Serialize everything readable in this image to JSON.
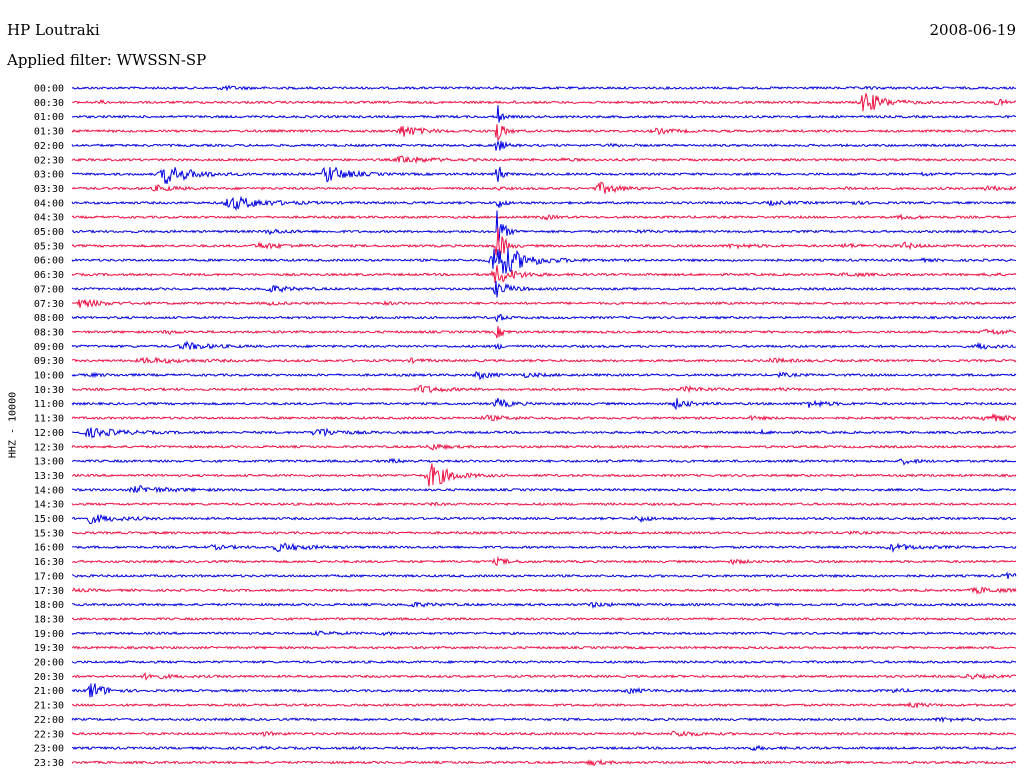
{
  "header": {
    "station": "HP Loutraki",
    "date": "2008-06-19",
    "filter": "Applied filter: WWSSN-SP",
    "ylabel": "HHZ - 10000"
  },
  "colors": {
    "blue": "#0000e0",
    "red": "#ee1144"
  },
  "chart_data": {
    "type": "line",
    "title": "",
    "xlabel": "",
    "ylabel": "HHZ - 10000",
    "rows": [
      {
        "time": "00:00",
        "color": "blue",
        "events": [
          [
            0.16,
            0.5,
            0.03
          ],
          [
            0.45,
            0.3,
            0.01
          ],
          [
            0.84,
            0.2,
            0.03
          ]
        ]
      },
      {
        "time": "00:30",
        "color": "red",
        "events": [
          [
            0.03,
            0.4,
            0.01
          ],
          [
            0.47,
            0.3,
            0.01
          ],
          [
            0.84,
            3.5,
            0.03
          ],
          [
            0.98,
            0.8,
            0.02
          ]
        ]
      },
      {
        "time": "01:00",
        "color": "blue",
        "events": [
          [
            0.45,
            6.0,
            0.005
          ]
        ]
      },
      {
        "time": "01:30",
        "color": "red",
        "events": [
          [
            0.35,
            1.8,
            0.03
          ],
          [
            0.45,
            4.0,
            0.01
          ],
          [
            0.62,
            0.7,
            0.03
          ]
        ]
      },
      {
        "time": "02:00",
        "color": "blue",
        "events": [
          [
            0.45,
            2.5,
            0.01
          ],
          [
            0.57,
            0.3,
            0.02
          ]
        ]
      },
      {
        "time": "02:30",
        "color": "red",
        "events": [
          [
            0.35,
            1.1,
            0.04
          ],
          [
            0.52,
            0.3,
            0.02
          ]
        ]
      },
      {
        "time": "03:00",
        "color": "blue",
        "events": [
          [
            0.1,
            3.0,
            0.04
          ],
          [
            0.27,
            3.0,
            0.03
          ],
          [
            0.45,
            8.0,
            0.005
          ],
          [
            0.9,
            0.4,
            0.02
          ]
        ]
      },
      {
        "time": "03:30",
        "color": "red",
        "events": [
          [
            0.09,
            0.8,
            0.03
          ],
          [
            0.45,
            0.5,
            0.01
          ],
          [
            0.56,
            1.7,
            0.03
          ],
          [
            0.82,
            0.4,
            0.02
          ],
          [
            0.97,
            0.6,
            0.03
          ]
        ]
      },
      {
        "time": "04:00",
        "color": "blue",
        "events": [
          [
            0.17,
            2.0,
            0.05
          ],
          [
            0.45,
            2.0,
            0.01
          ],
          [
            0.74,
            0.5,
            0.03
          ],
          [
            0.82,
            0.6,
            0.02
          ]
        ]
      },
      {
        "time": "04:30",
        "color": "red",
        "events": [
          [
            0.5,
            0.6,
            0.02
          ],
          [
            0.88,
            0.5,
            0.03
          ]
        ]
      },
      {
        "time": "05:00",
        "color": "blue",
        "events": [
          [
            0.21,
            0.6,
            0.03
          ],
          [
            0.45,
            7.0,
            0.01
          ],
          [
            0.6,
            0.3,
            0.02
          ]
        ]
      },
      {
        "time": "05:30",
        "color": "red",
        "events": [
          [
            0.2,
            0.8,
            0.04
          ],
          [
            0.45,
            8.0,
            0.01
          ],
          [
            0.7,
            0.5,
            0.04
          ],
          [
            0.82,
            0.5,
            0.03
          ],
          [
            0.88,
            1.0,
            0.02
          ]
        ]
      },
      {
        "time": "06:00",
        "color": "blue",
        "events": [
          [
            0.45,
            6.0,
            0.04
          ],
          [
            0.9,
            0.3,
            0.02
          ]
        ]
      },
      {
        "time": "06:30",
        "color": "red",
        "events": [
          [
            0.45,
            3.0,
            0.03
          ],
          [
            0.82,
            0.5,
            0.03
          ],
          [
            0.97,
            0.4,
            0.02
          ]
        ]
      },
      {
        "time": "07:00",
        "color": "blue",
        "events": [
          [
            0.21,
            1.0,
            0.03
          ],
          [
            0.45,
            2.5,
            0.02
          ]
        ]
      },
      {
        "time": "07:30",
        "color": "red",
        "events": [
          [
            0.01,
            1.3,
            0.03
          ],
          [
            0.21,
            0.4,
            0.02
          ],
          [
            0.33,
            0.3,
            0.02
          ]
        ]
      },
      {
        "time": "08:00",
        "color": "blue",
        "events": [
          [
            0.45,
            1.5,
            0.01
          ]
        ]
      },
      {
        "time": "08:30",
        "color": "red",
        "events": [
          [
            0.1,
            0.5,
            0.02
          ],
          [
            0.45,
            2.0,
            0.01
          ],
          [
            0.97,
            0.7,
            0.04
          ]
        ]
      },
      {
        "time": "09:00",
        "color": "blue",
        "events": [
          [
            0.12,
            1.1,
            0.04
          ],
          [
            0.45,
            0.8,
            0.01
          ],
          [
            0.96,
            1.0,
            0.02
          ]
        ]
      },
      {
        "time": "09:30",
        "color": "red",
        "events": [
          [
            0.08,
            0.7,
            0.06
          ],
          [
            0.36,
            0.5,
            0.02
          ],
          [
            0.74,
            0.6,
            0.03
          ]
        ]
      },
      {
        "time": "10:00",
        "color": "blue",
        "events": [
          [
            0.02,
            0.3,
            0.03
          ],
          [
            0.43,
            1.2,
            0.02
          ],
          [
            0.48,
            0.5,
            0.03
          ],
          [
            0.75,
            0.5,
            0.02
          ]
        ]
      },
      {
        "time": "10:30",
        "color": "red",
        "events": [
          [
            0.37,
            1.2,
            0.03
          ],
          [
            0.65,
            0.6,
            0.04
          ],
          [
            0.75,
            0.3,
            0.02
          ]
        ]
      },
      {
        "time": "11:00",
        "color": "blue",
        "events": [
          [
            0.45,
            1.6,
            0.02
          ],
          [
            0.64,
            1.5,
            0.02
          ],
          [
            0.78,
            1.0,
            0.03
          ]
        ]
      },
      {
        "time": "11:30",
        "color": "red",
        "events": [
          [
            0.44,
            0.6,
            0.04
          ],
          [
            0.72,
            0.4,
            0.02
          ],
          [
            0.97,
            1.2,
            0.03
          ]
        ]
      },
      {
        "time": "12:00",
        "color": "blue",
        "events": [
          [
            0.02,
            1.3,
            0.05
          ],
          [
            0.26,
            1.5,
            0.03
          ],
          [
            0.73,
            0.4,
            0.02
          ]
        ]
      },
      {
        "time": "12:30",
        "color": "red",
        "events": [
          [
            0.38,
            1.0,
            0.02
          ]
        ]
      },
      {
        "time": "13:00",
        "color": "blue",
        "events": [
          [
            0.34,
            0.4,
            0.03
          ],
          [
            0.57,
            0.3,
            0.02
          ],
          [
            0.88,
            0.8,
            0.02
          ]
        ]
      },
      {
        "time": "13:30",
        "color": "red",
        "events": [
          [
            0.38,
            4.0,
            0.03
          ]
        ]
      },
      {
        "time": "14:00",
        "color": "blue",
        "events": [
          [
            0.07,
            1.0,
            0.05
          ]
        ]
      },
      {
        "time": "14:30",
        "color": "red",
        "events": [
          [
            0.38,
            0.3,
            0.02
          ]
        ]
      },
      {
        "time": "15:00",
        "color": "blue",
        "events": [
          [
            0.02,
            1.3,
            0.04
          ],
          [
            0.6,
            0.9,
            0.02
          ]
        ]
      },
      {
        "time": "15:30",
        "color": "red",
        "events": [
          [
            0.82,
            0.3,
            0.02
          ]
        ]
      },
      {
        "time": "16:00",
        "color": "blue",
        "events": [
          [
            0.15,
            0.5,
            0.03
          ],
          [
            0.22,
            1.2,
            0.04
          ],
          [
            0.87,
            0.9,
            0.04
          ]
        ]
      },
      {
        "time": "16:30",
        "color": "red",
        "events": [
          [
            0.45,
            0.9,
            0.02
          ],
          [
            0.7,
            0.6,
            0.02
          ]
        ]
      },
      {
        "time": "17:00",
        "color": "blue",
        "events": [
          [
            0.99,
            0.8,
            0.02
          ]
        ]
      },
      {
        "time": "17:30",
        "color": "red",
        "events": [
          [
            0.0,
            0.5,
            0.02
          ],
          [
            0.96,
            0.8,
            0.04
          ]
        ]
      },
      {
        "time": "18:00",
        "color": "blue",
        "events": [
          [
            0.36,
            0.6,
            0.03
          ],
          [
            0.55,
            0.6,
            0.03
          ]
        ]
      },
      {
        "time": "18:30",
        "color": "red",
        "events": []
      },
      {
        "time": "19:00",
        "color": "blue",
        "events": [
          [
            0.26,
            0.4,
            0.04
          ],
          [
            0.33,
            0.3,
            0.02
          ]
        ]
      },
      {
        "time": "19:30",
        "color": "red",
        "events": []
      },
      {
        "time": "20:00",
        "color": "blue",
        "events": []
      },
      {
        "time": "20:30",
        "color": "red",
        "events": [
          [
            0.08,
            0.9,
            0.03
          ],
          [
            0.95,
            0.6,
            0.03
          ]
        ]
      },
      {
        "time": "21:00",
        "color": "blue",
        "events": [
          [
            0.02,
            3.0,
            0.02
          ],
          [
            0.59,
            0.6,
            0.03
          ],
          [
            0.87,
            0.5,
            0.02
          ]
        ]
      },
      {
        "time": "21:30",
        "color": "red",
        "events": [
          [
            0.89,
            0.8,
            0.02
          ]
        ]
      },
      {
        "time": "22:00",
        "color": "blue",
        "events": [
          [
            0.92,
            0.5,
            0.03
          ]
        ]
      },
      {
        "time": "22:30",
        "color": "red",
        "events": [
          [
            0.2,
            0.6,
            0.02
          ],
          [
            0.64,
            0.9,
            0.03
          ]
        ]
      },
      {
        "time": "23:00",
        "color": "blue",
        "events": [
          [
            0.2,
            0.3,
            0.02
          ],
          [
            0.3,
            0.2,
            0.02
          ],
          [
            0.72,
            0.5,
            0.03
          ]
        ]
      },
      {
        "time": "23:30",
        "color": "red",
        "events": [
          [
            0.55,
            0.8,
            0.02
          ]
        ]
      }
    ]
  }
}
